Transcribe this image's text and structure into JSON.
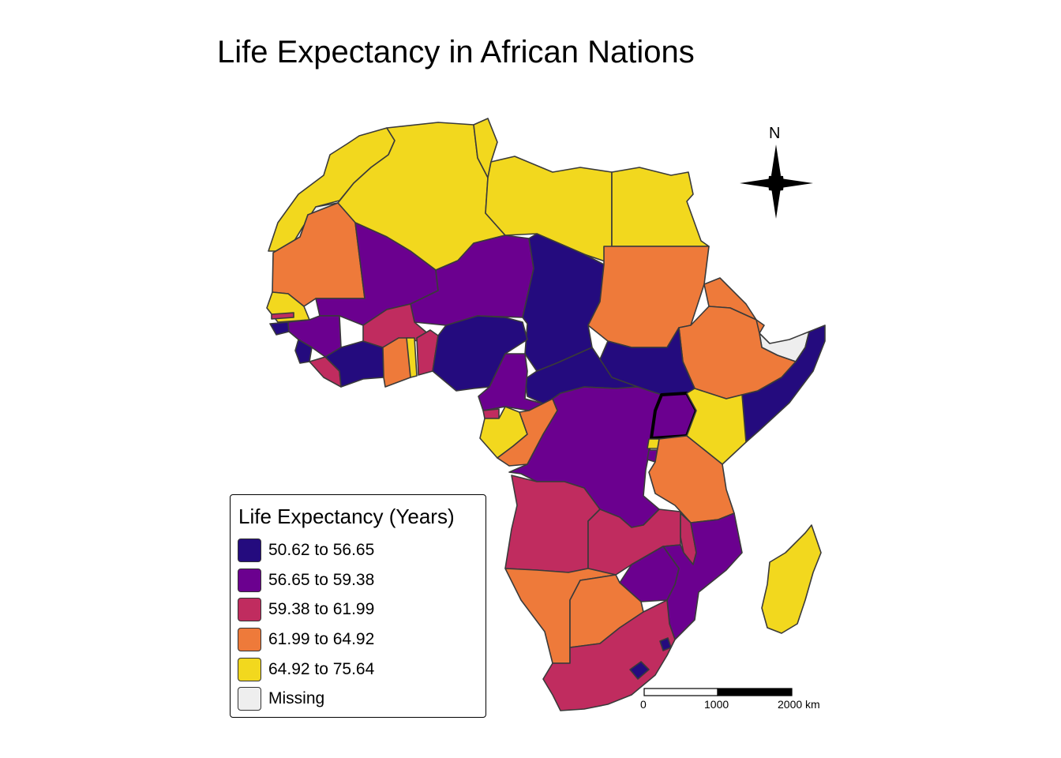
{
  "title": "Life Expectancy in African Nations",
  "north_arrow": {
    "label": "N"
  },
  "legend": {
    "title": "Life Expectancy (Years)",
    "items": [
      {
        "label": "50.62 to 56.65",
        "color": "#240b7e"
      },
      {
        "label": "56.65 to 59.38",
        "color": "#6b008f"
      },
      {
        "label": "59.38 to 61.99",
        "color": "#c02c5f"
      },
      {
        "label": "61.99 to 64.92",
        "color": "#ee7a3a"
      },
      {
        "label": "64.92 to 75.64",
        "color": "#f2d81e"
      },
      {
        "label": "Missing",
        "color": "#eeeeee"
      }
    ]
  },
  "scale_bar": {
    "labels": [
      "0",
      "1000",
      "2000 km"
    ]
  },
  "highlight": {
    "stroke": "#000000"
  },
  "border_color": "#3a3a3a"
}
